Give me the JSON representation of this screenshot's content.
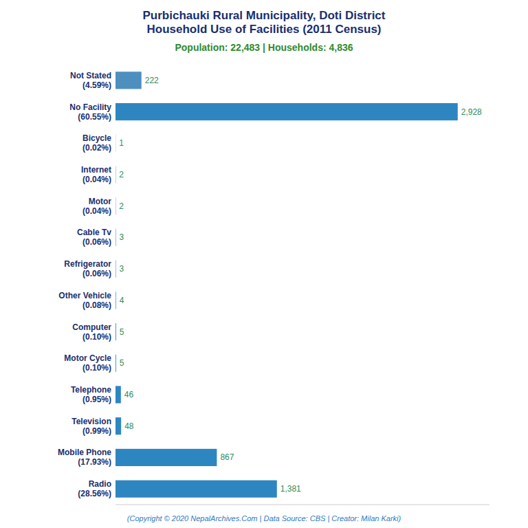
{
  "chart_data": {
    "type": "bar",
    "orientation": "horizontal",
    "title": "Purbichauki Rural Municipality, Doti District\nHousehold Use of Facilities (2011 Census)",
    "subtitle": "Population: 22,483 | Households: 4,836",
    "annotations": [
      "(Copyright © 2020 NepalArchives.Com | Data Source: CBS | Creator: Milan Karki)"
    ],
    "categories": [
      "Not Stated\n(4.59%)",
      "No Facility\n(60.55%)",
      "Bicycle\n(0.02%)",
      "Internet\n(0.04%)",
      "Motor\n(0.04%)",
      "Cable Tv\n(0.06%)",
      "Refrigerator\n(0.06%)",
      "Other Vehicle\n(0.08%)",
      "Computer\n(0.10%)",
      "Motor Cycle\n(0.10%)",
      "Telephone\n(0.95%)",
      "Television\n(0.99%)",
      "Mobile Phone\n(17.93%)",
      "Radio\n(28.56%)"
    ],
    "values": [
      222,
      2928,
      1,
      2,
      2,
      3,
      3,
      4,
      5,
      5,
      46,
      48,
      867,
      1381
    ],
    "value_labels": [
      "222",
      "2,928",
      "1",
      "2",
      "2",
      "3",
      "3",
      "4",
      "5",
      "5",
      "46",
      "48",
      "867",
      "1,381"
    ],
    "colors": [
      "#4d8fbf",
      "#2e86c1",
      "#2e86c1",
      "#2e86c1",
      "#2e86c1",
      "#2e86c1",
      "#2e86c1",
      "#2e86c1",
      "#2e86c1",
      "#2e86c1",
      "#2e86c1",
      "#2e86c1",
      "#2e86c1",
      "#2e86c1"
    ],
    "xlim": [
      0,
      3200
    ],
    "data_labels": true,
    "tick_labels": "y",
    "grid": false
  }
}
